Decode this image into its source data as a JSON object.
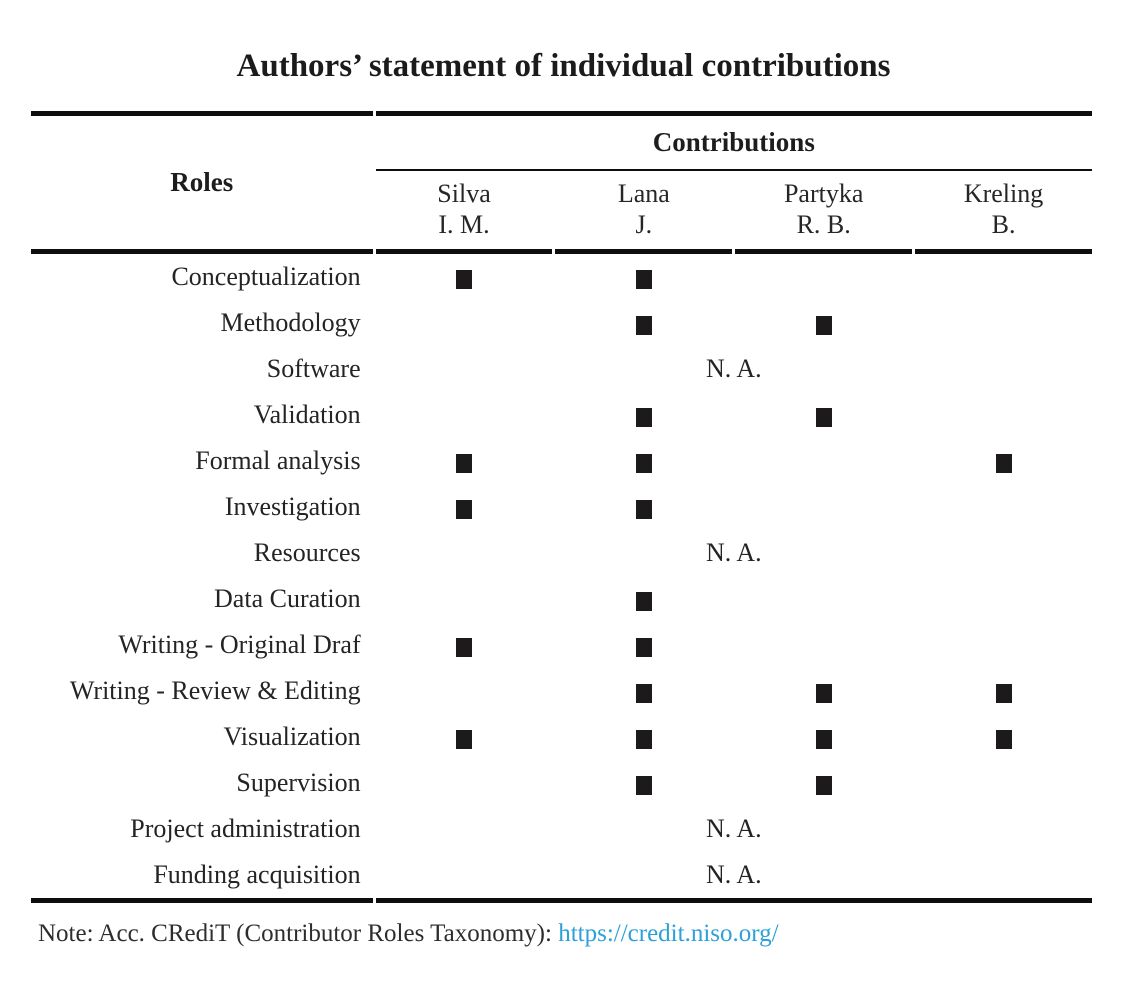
{
  "title": "Authors’ statement of individual contributions",
  "table": {
    "roles_header": "Roles",
    "contributions_header": "Contributions",
    "authors": [
      {
        "name": "Silva",
        "initials": "I. M."
      },
      {
        "name": "Lana",
        "initials": "J."
      },
      {
        "name": "Partyka",
        "initials": "R. B."
      },
      {
        "name": "Kreling",
        "initials": "B."
      }
    ],
    "na_label": "N. A.",
    "mark_symbol": "■",
    "rows": [
      {
        "role": "Conceptualization",
        "marks": [
          1,
          1,
          0,
          0
        ]
      },
      {
        "role": "Methodology",
        "marks": [
          0,
          1,
          1,
          0
        ]
      },
      {
        "role": "Software",
        "na": true
      },
      {
        "role": "Validation",
        "marks": [
          0,
          1,
          1,
          0
        ]
      },
      {
        "role": "Formal analysis",
        "marks": [
          1,
          1,
          0,
          1
        ]
      },
      {
        "role": "Investigation",
        "marks": [
          1,
          1,
          0,
          0
        ]
      },
      {
        "role": "Resources",
        "na": true
      },
      {
        "role": "Data Curation",
        "marks": [
          0,
          1,
          0,
          0
        ]
      },
      {
        "role": "Writing - Original Draf",
        "marks": [
          1,
          1,
          0,
          0
        ]
      },
      {
        "role": "Writing - Review & Editing",
        "marks": [
          0,
          1,
          1,
          1
        ]
      },
      {
        "role": "Visualization",
        "marks": [
          1,
          1,
          1,
          1
        ]
      },
      {
        "role": "Supervision",
        "marks": [
          0,
          1,
          1,
          0
        ]
      },
      {
        "role": "Project administration",
        "na": true
      },
      {
        "role": "Funding acquisition",
        "na": true
      }
    ]
  },
  "note": {
    "prefix": "Note: Acc. CRediT (Contributor Roles Taxonomy): ",
    "link": "https://credit.niso.org/"
  },
  "colors": {
    "link": "#2da0d8",
    "mark": "#1d1a1b",
    "rule": "#0e0e0e",
    "background": "#ffffff"
  }
}
